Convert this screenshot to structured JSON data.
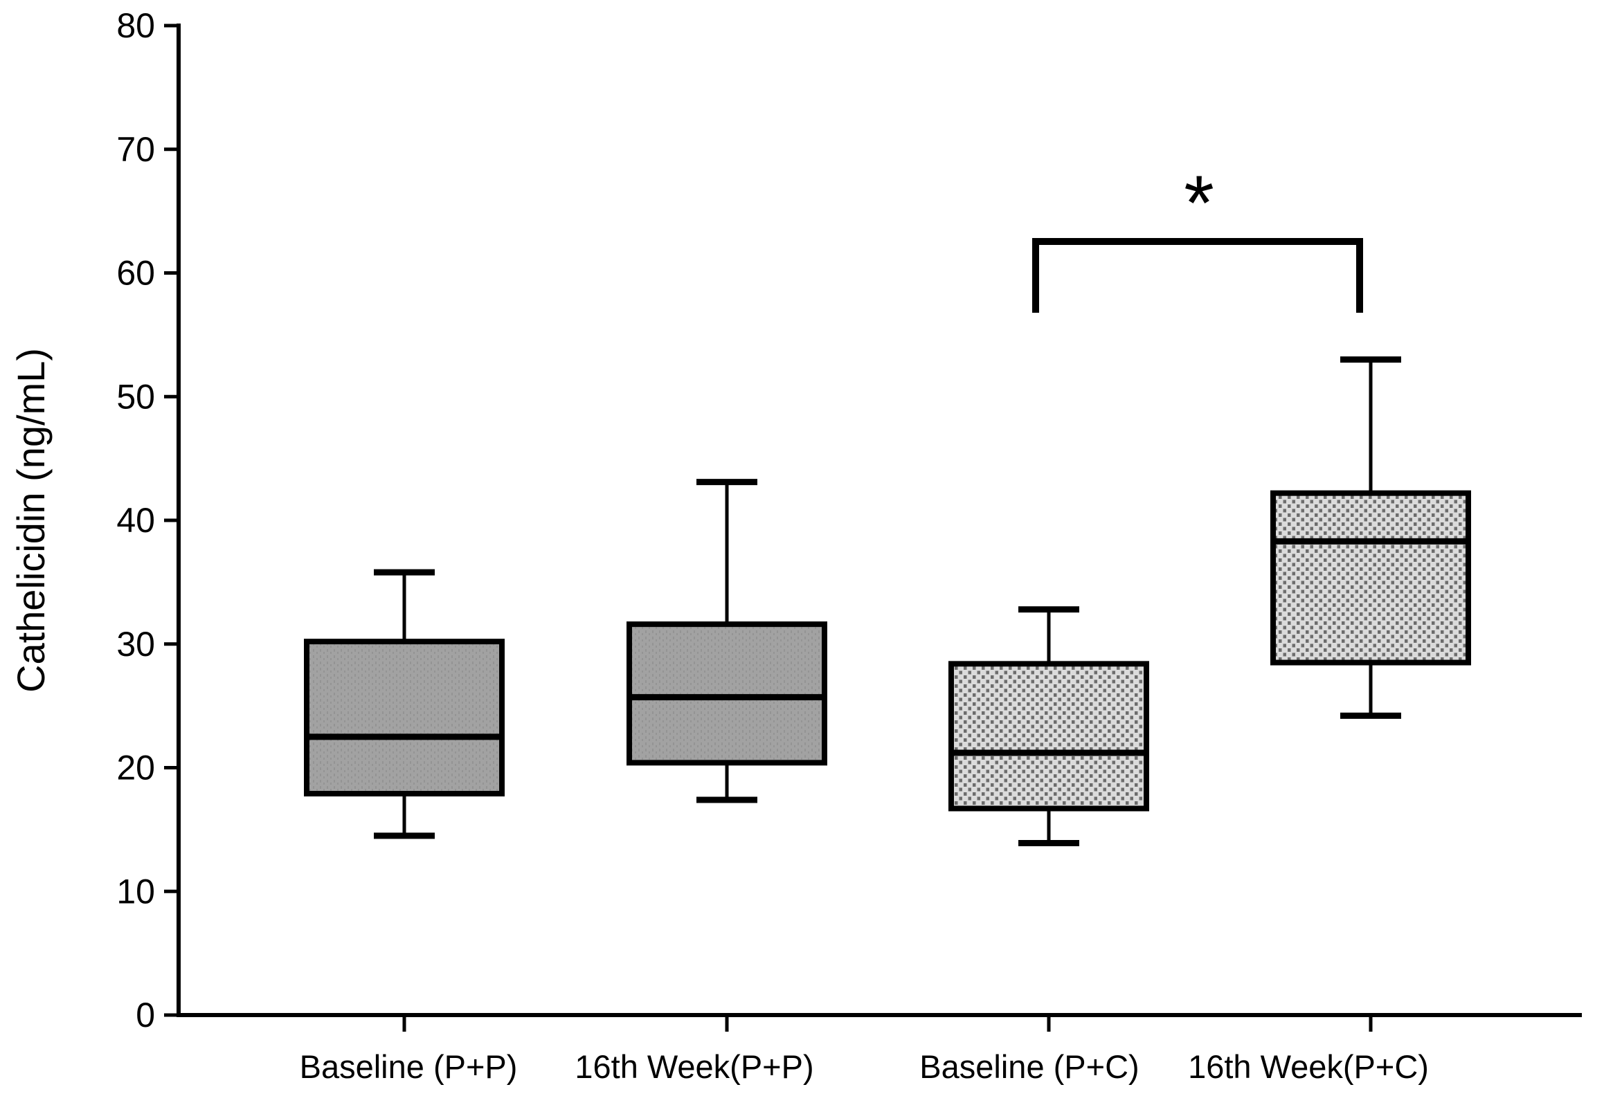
{
  "chart_data": {
    "type": "box",
    "title": "",
    "xlabel": "",
    "ylabel": "Cathelicidin (ng/mL)",
    "ylim": [
      0,
      80
    ],
    "yticks": [
      0,
      10,
      20,
      30,
      40,
      50,
      60,
      70,
      80
    ],
    "grid": false,
    "legend_position": "none",
    "categories": [
      "Baseline (P+P)",
      "16th Week(P+P)",
      "Baseline (P+C)",
      "16th Week(P+C)"
    ],
    "series": [
      {
        "name": "Baseline (P+P)",
        "group": "P+P",
        "fill_style": "solid-gray",
        "whisker_low": 14.5,
        "q1": 17.9,
        "median": 22.5,
        "q3": 30.2,
        "whisker_high": 35.8
      },
      {
        "name": "16th Week(P+P)",
        "group": "P+P",
        "fill_style": "solid-gray",
        "whisker_low": 17.4,
        "q1": 20.4,
        "median": 25.7,
        "q3": 31.6,
        "whisker_high": 43.1
      },
      {
        "name": "Baseline (P+C)",
        "group": "P+C",
        "fill_style": "stippled-gray",
        "whisker_low": 13.9,
        "q1": 16.7,
        "median": 21.2,
        "q3": 28.4,
        "whisker_high": 32.8
      },
      {
        "name": "16th Week(P+C)",
        "group": "P+C",
        "fill_style": "stippled-gray",
        "whisker_low": 24.2,
        "q1": 28.5,
        "median": 38.3,
        "q3": 42.2,
        "whisker_high": 53.0
      }
    ],
    "significance": {
      "between": [
        "Baseline (P+C)",
        "16th Week(P+C)"
      ],
      "label": "*"
    },
    "colors": {
      "stroke": "#000000",
      "background": "#ffffff",
      "solid_gray_fill": "#a2a2a2",
      "solid_gray_texture": "#949494",
      "stipple_background": "#dbdbdb",
      "stipple_dot": "#6d6d6d"
    }
  }
}
